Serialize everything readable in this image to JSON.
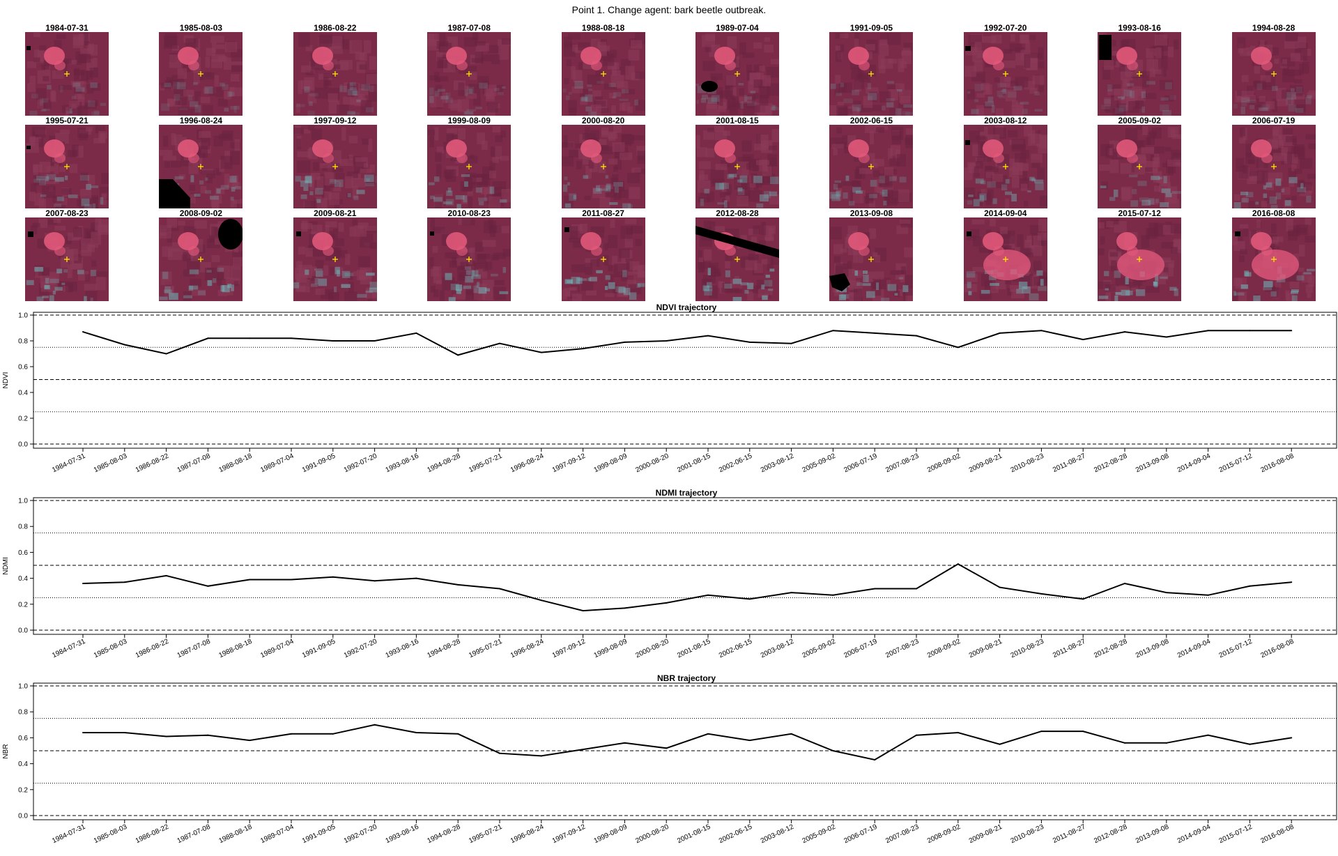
{
  "figure": {
    "title": "Point 1. Change agent: bark beetle outbreak."
  },
  "thumbnails": {
    "dates": [
      "1984-07-31",
      "1985-08-03",
      "1986-08-22",
      "1987-07-08",
      "1988-08-18",
      "1989-07-04",
      "1991-09-05",
      "1992-07-20",
      "1993-08-16",
      "1994-08-28",
      "1995-07-21",
      "1996-08-24",
      "1997-09-12",
      "1999-08-09",
      "2000-08-20",
      "2001-08-15",
      "2002-06-15",
      "2003-08-12",
      "2005-09-02",
      "2006-07-19",
      "2007-08-23",
      "2008-09-02",
      "2009-08-21",
      "2010-08-23",
      "2011-08-27",
      "2012-08-28",
      "2013-09-08",
      "2014-09-04",
      "2015-07-12",
      "2016-08-08"
    ],
    "marker_color": "#ffe600",
    "palette": {
      "base": "#7b2a47",
      "bright": "#e65a7d",
      "cyan": "#6fb7b9",
      "nodata": "#000000"
    }
  },
  "chart_data": [
    {
      "type": "line",
      "title": "NDVI trajectory",
      "ylabel": "NDVI",
      "ylim": [
        0,
        1
      ],
      "yticks": [
        "0.0",
        "0.2",
        "0.4",
        "0.6",
        "0.8",
        "1.0"
      ],
      "dashed_lines": [
        0,
        0.5,
        1
      ],
      "dotted_lines": [
        0.25,
        0.75
      ],
      "categories": [
        "1984-07-31",
        "1985-08-03",
        "1986-08-22",
        "1987-07-08",
        "1988-08-18",
        "1989-07-04",
        "1991-09-05",
        "1992-07-20",
        "1993-08-16",
        "1994-08-28",
        "1995-07-21",
        "1996-08-24",
        "1997-09-12",
        "1999-08-09",
        "2000-08-20",
        "2001-08-15",
        "2002-06-15",
        "2003-08-12",
        "2005-09-02",
        "2006-07-19",
        "2007-08-23",
        "2008-09-02",
        "2009-08-21",
        "2010-08-23",
        "2011-08-27",
        "2012-08-28",
        "2013-09-08",
        "2014-09-04",
        "2015-07-12",
        "2016-08-08"
      ],
      "values": [
        0.87,
        0.77,
        0.7,
        0.82,
        0.82,
        0.82,
        0.8,
        0.8,
        0.86,
        0.69,
        0.78,
        0.71,
        0.74,
        0.79,
        0.8,
        0.84,
        0.79,
        0.78,
        0.88,
        0.86,
        0.84,
        0.75,
        0.86,
        0.88,
        0.81,
        0.87,
        0.83,
        0.88,
        0.88,
        0.88
      ]
    },
    {
      "type": "line",
      "title": "NDMI trajectory",
      "ylabel": "NDMI",
      "ylim": [
        0,
        1
      ],
      "yticks": [
        "0.0",
        "0.2",
        "0.4",
        "0.6",
        "0.8",
        "1.0"
      ],
      "dashed_lines": [
        0,
        0.5,
        1
      ],
      "dotted_lines": [
        0.25,
        0.75
      ],
      "categories": [
        "1984-07-31",
        "1985-08-03",
        "1986-08-22",
        "1987-07-08",
        "1988-08-18",
        "1989-07-04",
        "1991-09-05",
        "1992-07-20",
        "1993-08-16",
        "1994-08-28",
        "1995-07-21",
        "1996-08-24",
        "1997-09-12",
        "1999-08-09",
        "2000-08-20",
        "2001-08-15",
        "2002-06-15",
        "2003-08-12",
        "2005-09-02",
        "2006-07-19",
        "2007-08-23",
        "2008-09-02",
        "2009-08-21",
        "2010-08-23",
        "2011-08-27",
        "2012-08-28",
        "2013-09-08",
        "2014-09-04",
        "2015-07-12",
        "2016-08-08"
      ],
      "values": [
        0.36,
        0.37,
        0.42,
        0.34,
        0.39,
        0.39,
        0.41,
        0.38,
        0.4,
        0.35,
        0.32,
        0.23,
        0.15,
        0.17,
        0.21,
        0.27,
        0.24,
        0.29,
        0.27,
        0.32,
        0.32,
        0.51,
        0.33,
        0.28,
        0.24,
        0.36,
        0.29,
        0.27,
        0.34,
        0.37
      ]
    },
    {
      "type": "line",
      "title": "NBR trajectory",
      "ylabel": "NBR",
      "ylim": [
        0,
        1
      ],
      "yticks": [
        "0.0",
        "0.2",
        "0.4",
        "0.6",
        "0.8",
        "1.0"
      ],
      "dashed_lines": [
        0,
        0.5,
        1
      ],
      "dotted_lines": [
        0.25,
        0.75
      ],
      "categories": [
        "1984-07-31",
        "1985-08-03",
        "1986-08-22",
        "1987-07-08",
        "1988-08-18",
        "1989-07-04",
        "1991-09-05",
        "1992-07-20",
        "1993-08-16",
        "1994-08-28",
        "1995-07-21",
        "1996-08-24",
        "1997-09-12",
        "1999-08-09",
        "2000-08-20",
        "2001-08-15",
        "2002-06-15",
        "2003-08-12",
        "2005-09-02",
        "2006-07-19",
        "2007-08-23",
        "2008-09-02",
        "2009-08-21",
        "2010-08-23",
        "2011-08-27",
        "2012-08-28",
        "2013-09-08",
        "2014-09-04",
        "2015-07-12",
        "2016-08-08"
      ],
      "values": [
        0.64,
        0.64,
        0.61,
        0.62,
        0.58,
        0.63,
        0.63,
        0.7,
        0.64,
        0.63,
        0.48,
        0.46,
        0.51,
        0.56,
        0.52,
        0.63,
        0.58,
        0.63,
        0.5,
        0.43,
        0.62,
        0.64,
        0.55,
        0.65,
        0.65,
        0.56,
        0.56,
        0.62,
        0.55,
        0.6
      ]
    }
  ]
}
